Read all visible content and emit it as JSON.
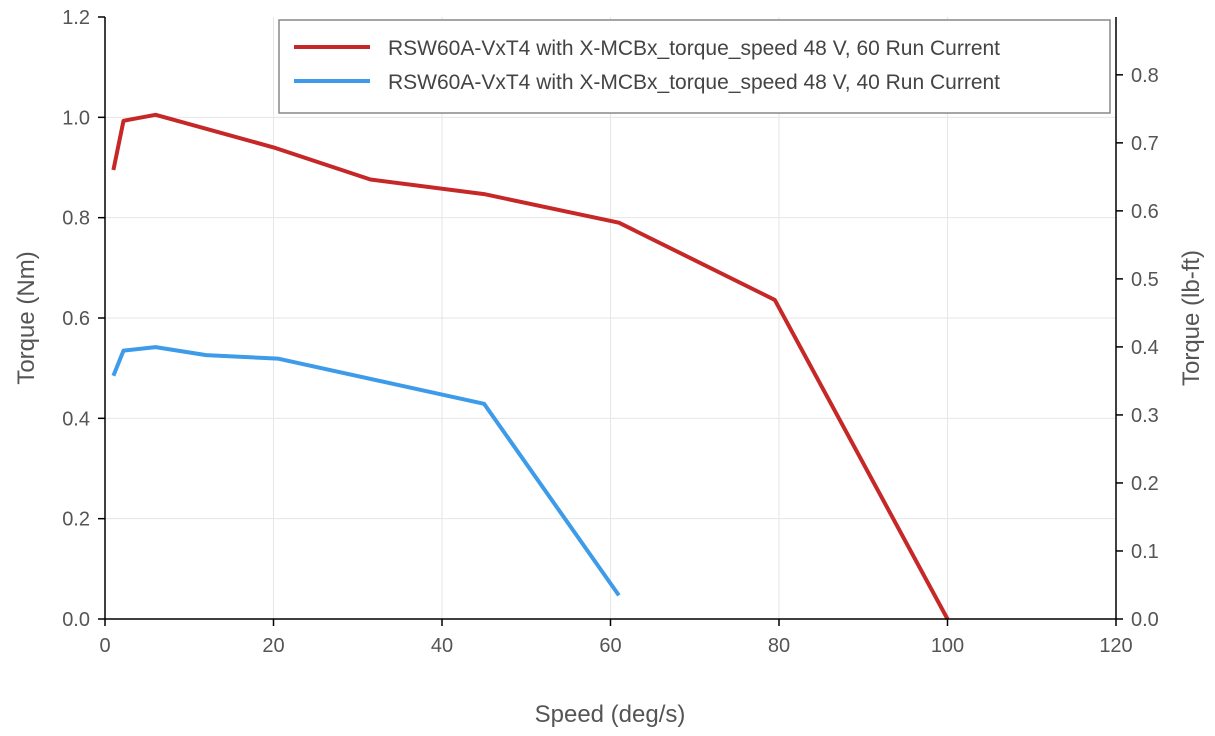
{
  "chart_data": {
    "type": "line",
    "xlabel": "Speed (deg/s)",
    "ylabel": "Torque (Nm)",
    "y2label": "Torque (lb-ft)",
    "xlim": [
      0,
      120
    ],
    "ylim": [
      0,
      1.2
    ],
    "y2lim": [
      0,
      0.885
    ],
    "xticks": [
      "0",
      "20",
      "40",
      "60",
      "80",
      "100",
      "120"
    ],
    "yticks": [
      "0.0",
      "0.2",
      "0.4",
      "0.6",
      "0.8",
      "1.0",
      "1.2"
    ],
    "y2ticks": [
      "0.0",
      "0.1",
      "0.2",
      "0.3",
      "0.4",
      "0.5",
      "0.6",
      "0.7",
      "0.8"
    ],
    "grid": true,
    "legend_position": "top-right",
    "series": [
      {
        "name": "RSW60A-VxT4 with X-MCBx_torque_speed 48 V, 60 Run Current",
        "color": "#c62828",
        "x": [
          1,
          2.2,
          6,
          20,
          31.5,
          45,
          61,
          79.5,
          100
        ],
        "y": [
          0.895,
          0.993,
          1.005,
          0.94,
          0.876,
          0.847,
          0.79,
          0.636,
          0.0
        ]
      },
      {
        "name": "RSW60A-VxT4 with X-MCBx_torque_speed 48 V, 40 Run Current",
        "color": "#3d9be9",
        "x": [
          1,
          2.2,
          6,
          12,
          20.5,
          45,
          61
        ],
        "y": [
          0.485,
          0.535,
          0.542,
          0.526,
          0.519,
          0.429,
          0.047
        ]
      }
    ]
  }
}
